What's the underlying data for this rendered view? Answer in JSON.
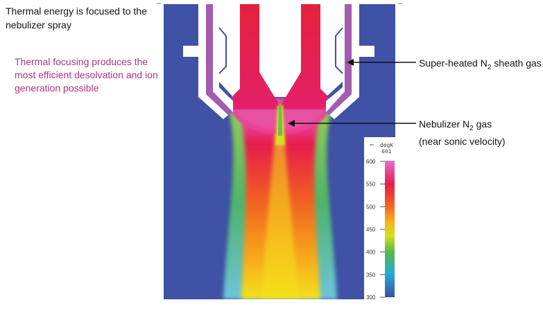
{
  "headline": "Thermal energy is focused to the nebulizer spray",
  "subheadline": "Thermal focusing produces the most efficient desolvation and ion generation possible",
  "callouts": {
    "sheath_gas": {
      "prefix": "Super-heated N",
      "subscript": "2",
      "suffix": " sheath gas"
    },
    "nebulizer_gas": {
      "prefix": "Nebulizer N",
      "subscript": "2",
      "suffix": " gas",
      "line2": "(near sonic velocity)"
    }
  },
  "colorbar": {
    "unit_line1": "degK",
    "unit_line2": "601",
    "ticks": [
      "600",
      "550",
      "500",
      "450",
      "400",
      "350",
      "300"
    ]
  },
  "colors": {
    "subheadline": "#b0318a",
    "background_gas": "#3f52a5",
    "hot": "#e3165b",
    "hottest": "#e857c8",
    "metal": "#a35cae"
  }
}
